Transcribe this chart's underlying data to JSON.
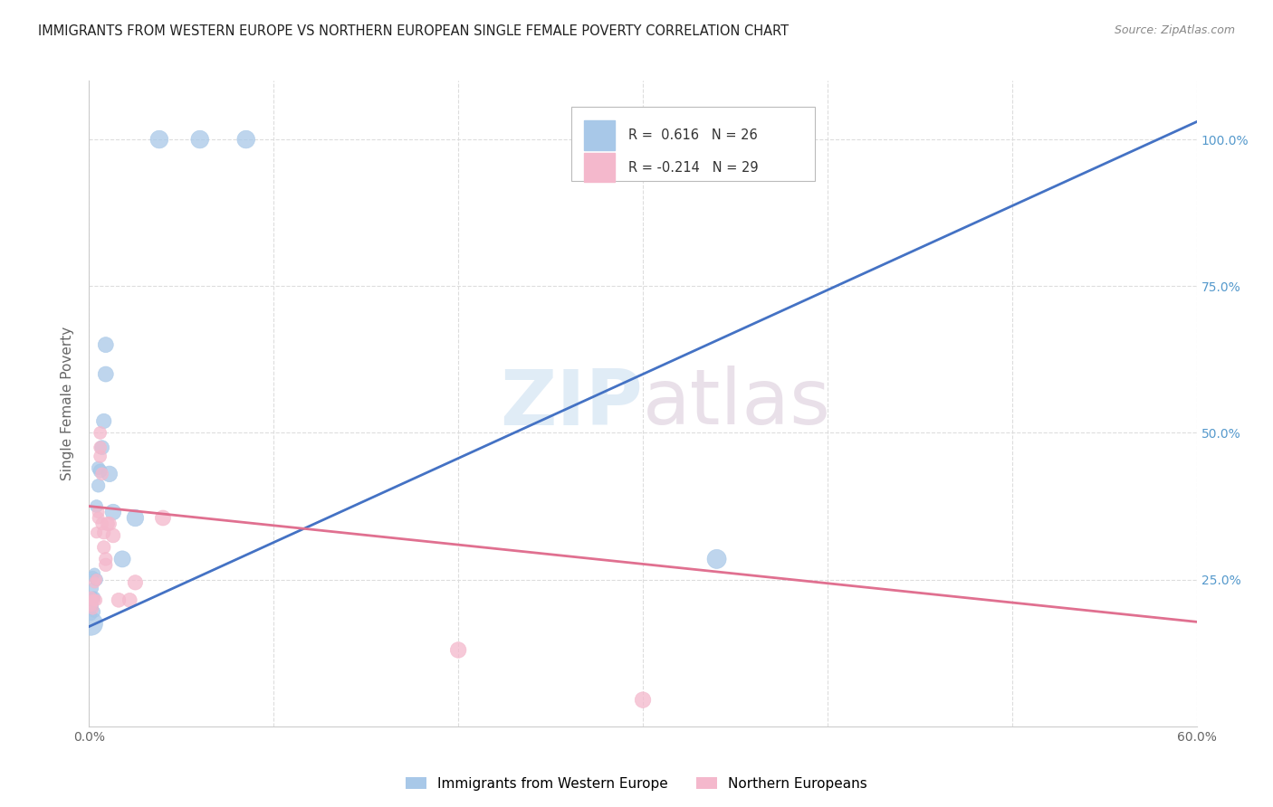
{
  "title": "IMMIGRANTS FROM WESTERN EUROPE VS NORTHERN EUROPEAN SINGLE FEMALE POVERTY CORRELATION CHART",
  "source": "Source: ZipAtlas.com",
  "ylabel": "Single Female Poverty",
  "legend1_label": "Immigrants from Western Europe",
  "legend2_label": "Northern Europeans",
  "R_blue": "0.616",
  "N_blue": "26",
  "R_pink": "-0.214",
  "N_pink": "29",
  "blue_color": "#a8c8e8",
  "pink_color": "#f4b8cc",
  "blue_line_color": "#4472c4",
  "pink_line_color": "#e07090",
  "right_axis_color": "#5599cc",
  "background_color": "#ffffff",
  "grid_color": "#dddddd",
  "watermark_zip": "ZIP",
  "watermark_atlas": "atlas",
  "xlim": [
    0.0,
    0.6
  ],
  "ylim": [
    0.0,
    1.1
  ],
  "x_ticks": [
    0.0,
    0.1,
    0.2,
    0.3,
    0.4,
    0.5,
    0.6
  ],
  "x_tick_labels": [
    "0.0%",
    "",
    "",
    "",
    "",
    "",
    "60.0%"
  ],
  "y_ticks": [
    0.25,
    0.5,
    0.75,
    1.0
  ],
  "y_tick_labels": [
    "25.0%",
    "50.0%",
    "75.0%",
    "100.0%"
  ],
  "blue_line_x": [
    0.0,
    0.6
  ],
  "blue_line_y": [
    0.17,
    1.03
  ],
  "pink_line_x": [
    0.0,
    0.6
  ],
  "pink_line_y": [
    0.375,
    0.178
  ],
  "blue_points": [
    [
      0.001,
      0.175
    ],
    [
      0.001,
      0.19
    ],
    [
      0.002,
      0.205
    ],
    [
      0.002,
      0.22
    ],
    [
      0.002,
      0.235
    ],
    [
      0.002,
      0.255
    ],
    [
      0.003,
      0.195
    ],
    [
      0.003,
      0.22
    ],
    [
      0.003,
      0.26
    ],
    [
      0.004,
      0.25
    ],
    [
      0.004,
      0.375
    ],
    [
      0.005,
      0.41
    ],
    [
      0.005,
      0.44
    ],
    [
      0.006,
      0.435
    ],
    [
      0.007,
      0.475
    ],
    [
      0.008,
      0.52
    ],
    [
      0.009,
      0.6
    ],
    [
      0.009,
      0.65
    ],
    [
      0.011,
      0.43
    ],
    [
      0.013,
      0.365
    ],
    [
      0.018,
      0.285
    ],
    [
      0.025,
      0.355
    ],
    [
      0.038,
      1.0
    ],
    [
      0.06,
      1.0
    ],
    [
      0.085,
      1.0
    ],
    [
      0.34,
      0.285
    ]
  ],
  "blue_sizes": [
    350,
    80,
    80,
    80,
    80,
    80,
    80,
    80,
    80,
    100,
    100,
    110,
    110,
    120,
    130,
    140,
    150,
    150,
    160,
    160,
    170,
    180,
    200,
    200,
    200,
    230
  ],
  "pink_points": [
    [
      0.001,
      0.205
    ],
    [
      0.001,
      0.22
    ],
    [
      0.002,
      0.2
    ],
    [
      0.002,
      0.215
    ],
    [
      0.003,
      0.215
    ],
    [
      0.003,
      0.245
    ],
    [
      0.004,
      0.215
    ],
    [
      0.004,
      0.25
    ],
    [
      0.004,
      0.33
    ],
    [
      0.005,
      0.355
    ],
    [
      0.005,
      0.365
    ],
    [
      0.006,
      0.46
    ],
    [
      0.006,
      0.475
    ],
    [
      0.006,
      0.5
    ],
    [
      0.007,
      0.43
    ],
    [
      0.007,
      0.345
    ],
    [
      0.008,
      0.33
    ],
    [
      0.008,
      0.305
    ],
    [
      0.009,
      0.285
    ],
    [
      0.009,
      0.275
    ],
    [
      0.01,
      0.345
    ],
    [
      0.011,
      0.345
    ],
    [
      0.013,
      0.325
    ],
    [
      0.016,
      0.215
    ],
    [
      0.022,
      0.215
    ],
    [
      0.025,
      0.245
    ],
    [
      0.04,
      0.355
    ],
    [
      0.2,
      0.13
    ],
    [
      0.3,
      0.045
    ]
  ],
  "pink_sizes": [
    80,
    80,
    80,
    80,
    80,
    80,
    80,
    80,
    80,
    90,
    90,
    100,
    100,
    100,
    100,
    100,
    110,
    110,
    110,
    110,
    120,
    120,
    130,
    130,
    130,
    140,
    150,
    160,
    160
  ]
}
